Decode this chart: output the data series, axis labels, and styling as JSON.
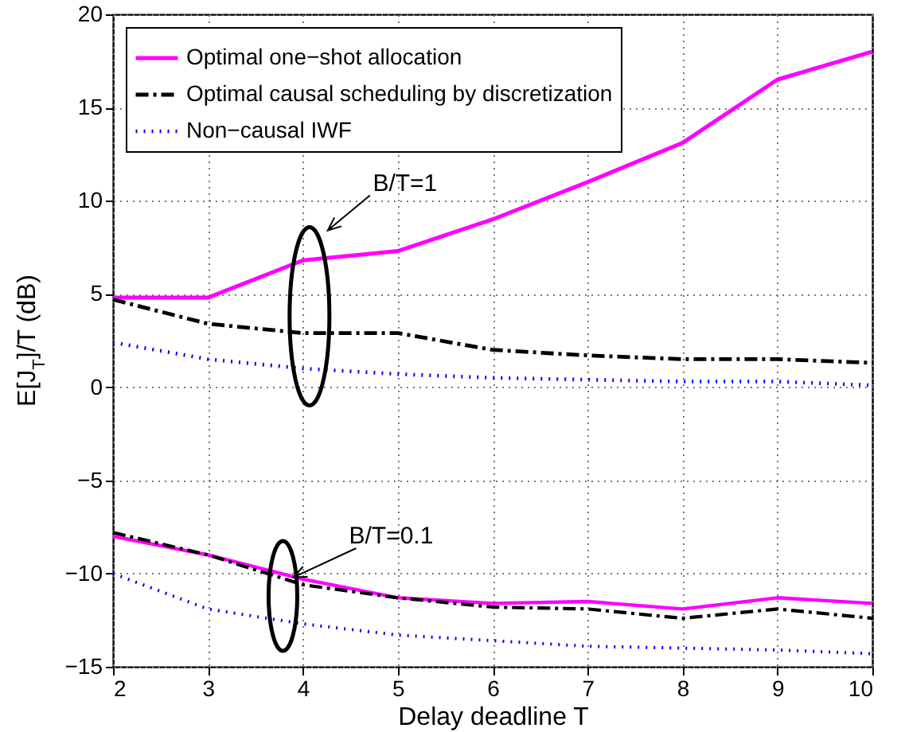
{
  "chart_data": {
    "type": "line",
    "xlabel": "Delay deadline T",
    "ylabel": "E[J$_{T}$]/T (dB)",
    "x": [
      2,
      3,
      4,
      5,
      6,
      7,
      8,
      9,
      10
    ],
    "xlim": [
      2,
      10
    ],
    "xticks": [
      2,
      3,
      4,
      5,
      6,
      7,
      8,
      9,
      10
    ],
    "ylim": [
      -15,
      20
    ],
    "yticks": [
      -15,
      -10,
      -5,
      0,
      5,
      10,
      15,
      20
    ],
    "grid": true,
    "legend": "top left",
    "marker": "none",
    "series": [
      {
        "name": "Optimal one−shot allocation",
        "color": "#ff00ff",
        "line_style": "solid",
        "values": [
          4.8,
          4.8,
          6.8,
          7.3,
          9.0,
          11.0,
          13.1,
          16.5,
          18.0
        ]
      },
      {
        "name": "Optimal causal scheduling by discretization",
        "color": "#000000",
        "line_style": "dashdot",
        "values": [
          4.7,
          3.4,
          2.9,
          2.9,
          2.0,
          1.7,
          1.5,
          1.5,
          1.3
        ]
      },
      {
        "name": "Non−causal IWF",
        "color": "#0000ff",
        "line_style": "dotted",
        "values": [
          2.4,
          1.5,
          1.0,
          0.7,
          0.5,
          0.4,
          0.3,
          0.3,
          0.1
        ]
      },
      {
        "color": "#ff00ff",
        "line_style": "solid",
        "values": [
          -8.0,
          -9.0,
          -10.3,
          -11.3,
          -11.6,
          -11.5,
          -11.9,
          -11.3,
          -11.6
        ]
      },
      {
        "color": "#000000",
        "line_style": "dashdot",
        "values": [
          -7.8,
          -9.0,
          -10.6,
          -11.3,
          -11.8,
          -11.9,
          -12.4,
          -11.9,
          -12.4
        ]
      },
      {
        "color": "#0000ff",
        "line_style": "dotted",
        "values": [
          -10.0,
          -11.9,
          -12.7,
          -13.3,
          -13.6,
          -13.9,
          -14.0,
          -14.1,
          -14.3
        ]
      }
    ],
    "annotations": [
      "B/T=1",
      {
        "text": "B/T=0.1",
        "x": 3.9,
        "y": -10.2
      }
    ]
  }
}
